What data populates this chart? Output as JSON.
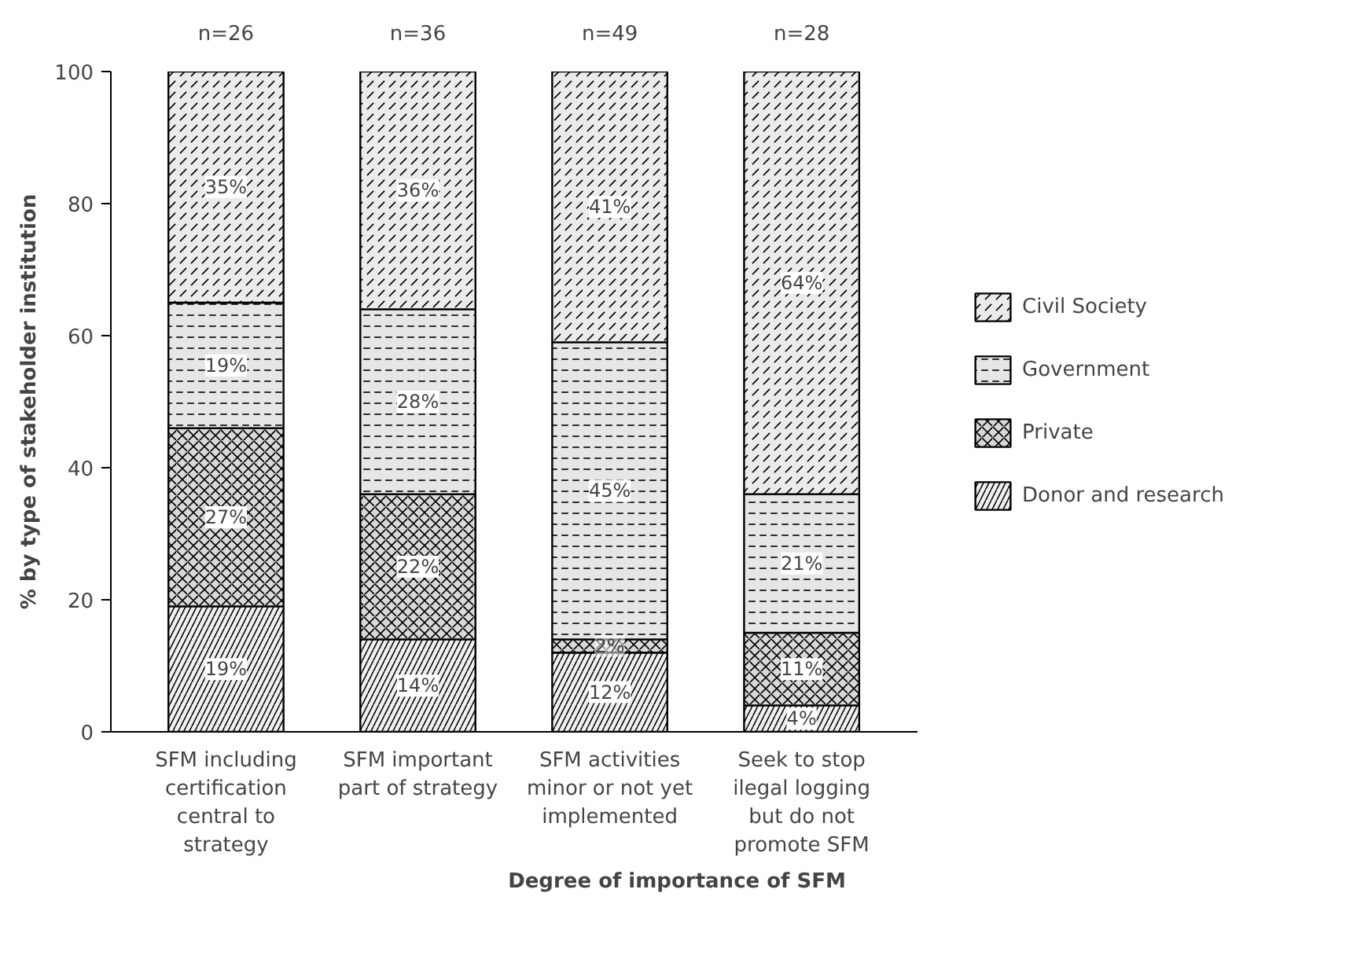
{
  "chart_data": {
    "type": "bar",
    "stacked": true,
    "xlabel": "Degree of importance of SFM",
    "ylabel": "% by type of stakeholder institution",
    "categories": [
      "SFM including certification central to strategy",
      "SFM important part of strategy",
      "SFM activities minor or not yet implemented",
      "Seek to stop ilegal logging but do not promote SFM"
    ],
    "series": [
      {
        "name": "Donor and research",
        "color": "#f0f0f0",
        "values": [
          19,
          14,
          12,
          4
        ],
        "value_labels": [
          "19%",
          "14%",
          "12%",
          "4%"
        ]
      },
      {
        "name": "Private",
        "color": "#d8d8d8",
        "values": [
          27,
          22,
          2,
          11
        ],
        "value_labels": [
          "27%",
          "22%",
          "2%",
          "11%"
        ]
      },
      {
        "name": "Government",
        "color": "#e6e6e6",
        "values": [
          19,
          28,
          45,
          21
        ],
        "value_labels": [
          "19%",
          "28%",
          "45%",
          "21%"
        ]
      },
      {
        "name": "Civil Society",
        "color": "#ebebeb",
        "values": [
          35,
          36,
          41,
          64
        ],
        "value_labels": [
          "35%",
          "36%",
          "41%",
          "64%"
        ]
      }
    ],
    "annotations": [
      "n=26",
      "n=36",
      "n=49",
      "n=28"
    ],
    "ylim": [
      0,
      100
    ],
    "yticks": [
      0,
      20,
      40,
      60,
      80,
      100
    ],
    "grid": false,
    "legend": "right"
  }
}
